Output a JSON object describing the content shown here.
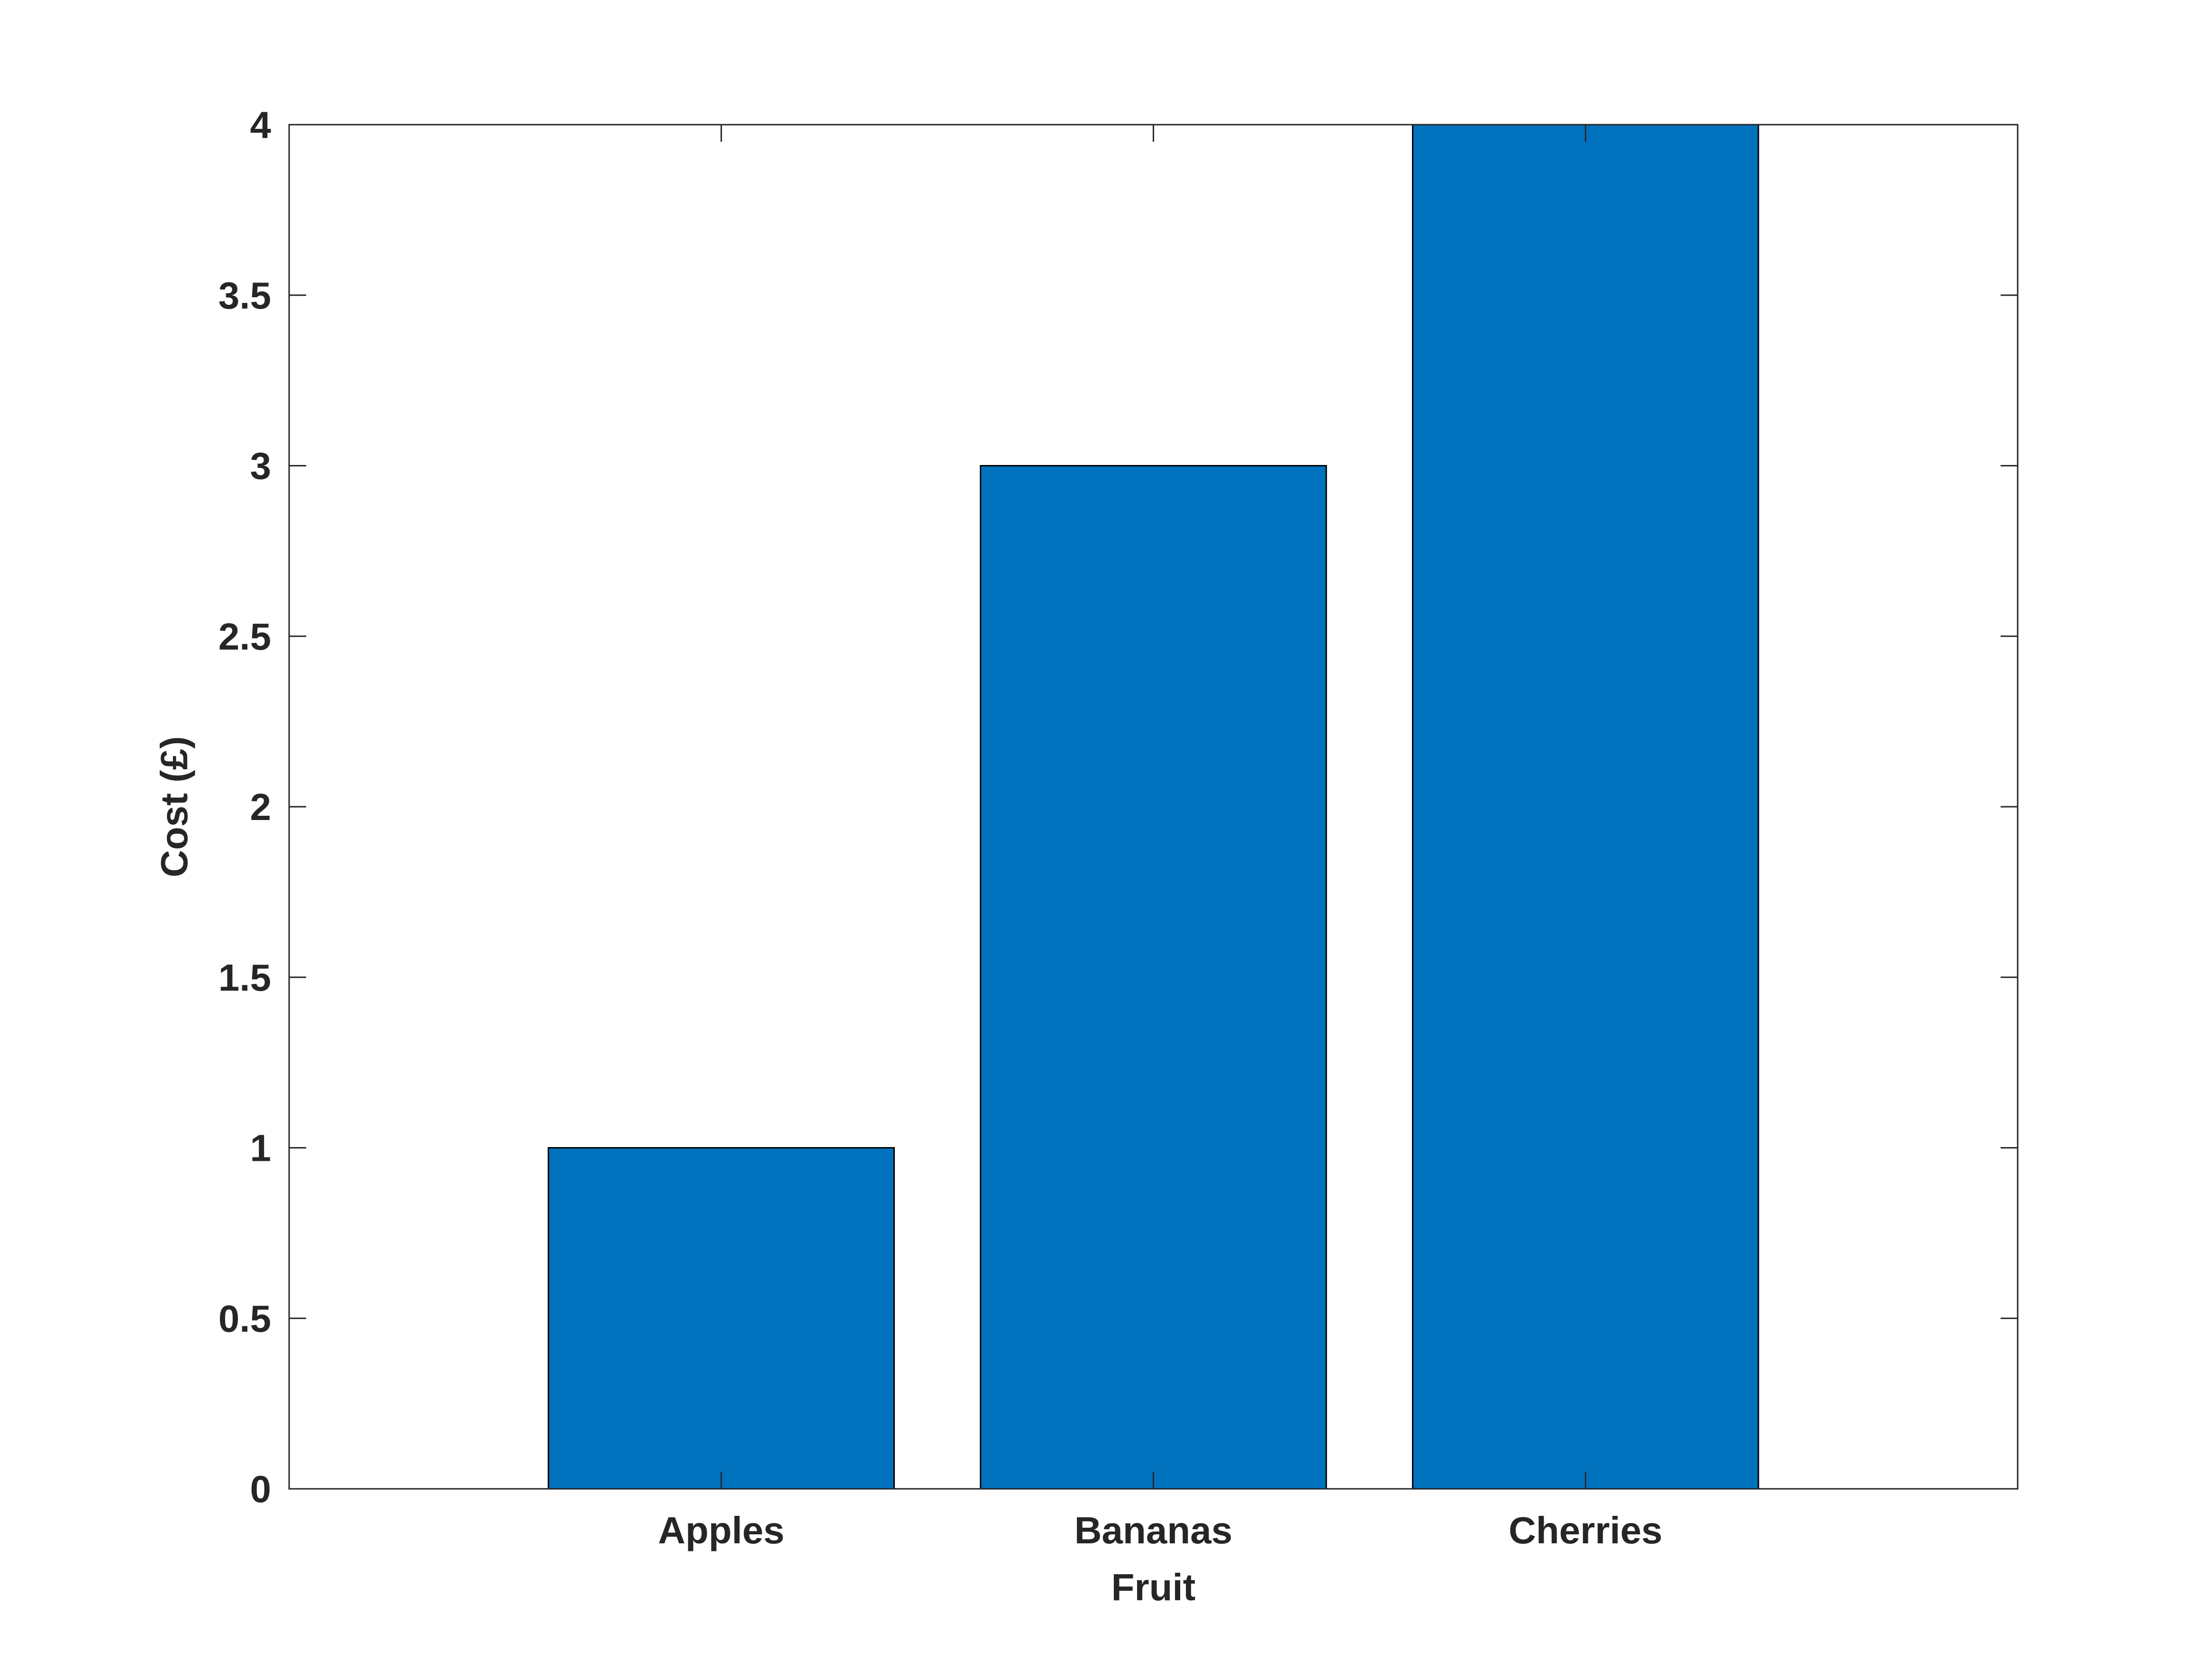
{
  "chart_data": {
    "type": "bar",
    "categories": [
      "Apples",
      "Bananas",
      "Cherries"
    ],
    "values": [
      1,
      3,
      4
    ],
    "title": "",
    "xlabel": "Fruit",
    "ylabel": "Cost (£)",
    "ylim": [
      0,
      4
    ],
    "yticks": [
      0,
      0.5,
      1,
      1.5,
      2,
      2.5,
      3,
      3.5,
      4
    ],
    "ytick_labels": [
      "0",
      "0.5",
      "1",
      "1.5",
      "2",
      "2.5",
      "3",
      "3.5",
      "4"
    ],
    "grid": false,
    "legend": "none",
    "bar_color": "#0072BD",
    "edge_color": "#000000"
  }
}
